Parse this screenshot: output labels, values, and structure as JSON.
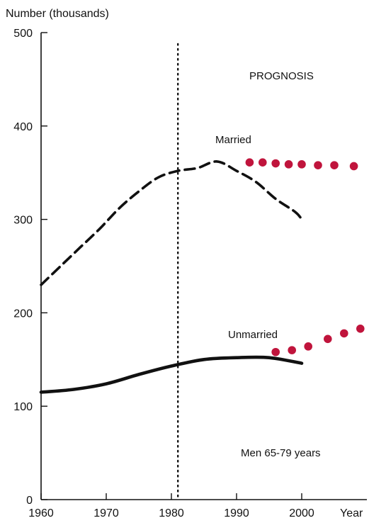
{
  "chart_data": {
    "type": "line",
    "ylabel": "Number (thousands)",
    "xlabel": "Year",
    "xlim": [
      1960,
      2010
    ],
    "ylim": [
      0,
      500
    ],
    "x_ticks": [
      1960,
      1970,
      1980,
      1990,
      2000
    ],
    "y_ticks": [
      0,
      100,
      200,
      300,
      400,
      500
    ],
    "grid": false,
    "divider_year": 1981,
    "annotations": {
      "prognosis": "PROGNOSIS",
      "married": "Married",
      "unmarried": "Unmarried",
      "subset": "Men 65-79 years"
    },
    "series": [
      {
        "name": "Married",
        "style": "dashed",
        "color": "#111111",
        "x": [
          1960,
          1963,
          1966,
          1969,
          1972,
          1975,
          1978,
          1981,
          1984,
          1987,
          1990,
          1993,
          1996,
          1999,
          2000
        ],
        "y": [
          230,
          250,
          270,
          290,
          312,
          330,
          345,
          352,
          355,
          362,
          352,
          340,
          322,
          308,
          300
        ]
      },
      {
        "name": "Unmarried",
        "style": "solid",
        "color": "#111111",
        "x": [
          1960,
          1965,
          1970,
          1975,
          1980,
          1985,
          1990,
          1995,
          2000
        ],
        "y": [
          115,
          118,
          124,
          134,
          143,
          150,
          152,
          152,
          146
        ]
      },
      {
        "name": "Married prognosis",
        "style": "dots",
        "color": "#c0143c",
        "x": [
          1992,
          1994,
          1996,
          1998,
          2000,
          2002.5,
          2005,
          2008
        ],
        "y": [
          361,
          361,
          360,
          359,
          359,
          358,
          358,
          357
        ]
      },
      {
        "name": "Unmarried prognosis",
        "style": "dots",
        "color": "#c0143c",
        "x": [
          1996,
          1998.5,
          2001,
          2004,
          2006.5,
          2009
        ],
        "y": [
          158,
          160,
          164,
          172,
          178,
          183
        ]
      }
    ]
  }
}
